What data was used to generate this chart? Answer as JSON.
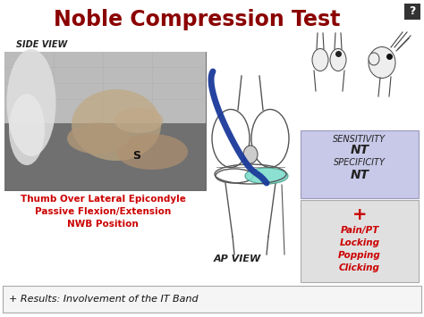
{
  "title": "Noble Compression Test",
  "title_color": "#8B0000",
  "title_fontsize": 17,
  "bg_color": "#FFFFFF",
  "side_view_label": "SIDE VIEW",
  "ap_view_label": "AP VIEW",
  "s_label": "S",
  "left_text_lines": [
    "Thumb Over Lateral Epicondyle",
    "Passive Flexion/Extension",
    "NWB Position"
  ],
  "left_text_color": "#CC0000",
  "sensitivity_box_color": "#C8C8E8",
  "sensitivity_lines": [
    "SENSITIVITY",
    "NT",
    "SPECIFICITY",
    "NT"
  ],
  "sensitivity_styles": [
    "italic",
    "italic",
    "italic",
    "italic"
  ],
  "sensitivity_bold": [
    false,
    true,
    false,
    true
  ],
  "plus_box_color": "#E0E0E0",
  "plus_box_lines": [
    "+",
    "Pain/PT",
    "Locking",
    "Popping",
    "Clicking"
  ],
  "plus_color": "#CC0000",
  "plus_box_text_color": "#CC0000",
  "bottom_bar_text": "+ Results: Involvement of the IT Band",
  "bottom_bar_color": "#F5F5F5",
  "question_mark_bg": "#333333",
  "question_mark_color": "#FFFFFF",
  "knee_line_color": "#1A3A9A",
  "knee_fill_color": "#7FDDCC",
  "knee_outline_color": "#555555"
}
